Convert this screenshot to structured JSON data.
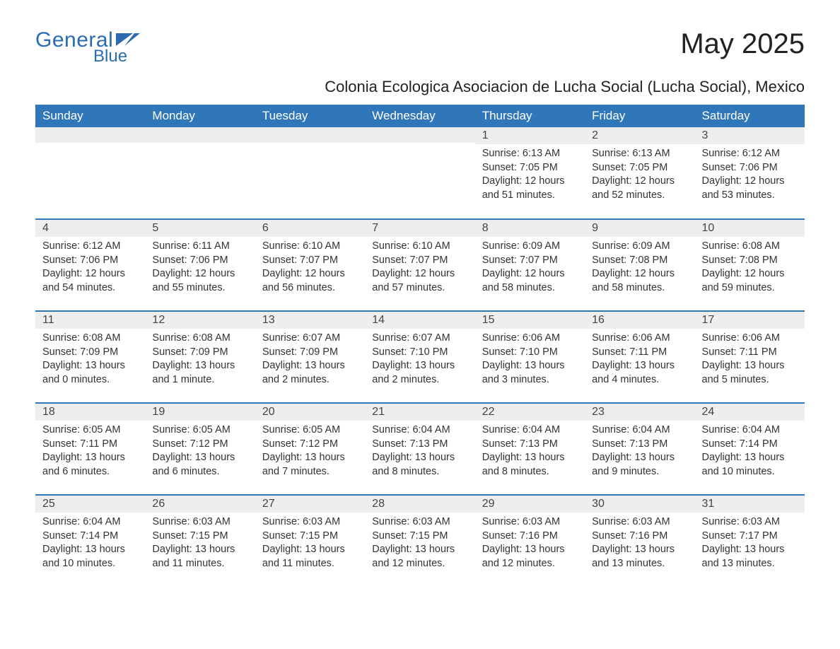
{
  "brand": {
    "general": "General",
    "blue": "Blue"
  },
  "title": "May 2025",
  "subtitle": "Colonia Ecologica Asociacion de Lucha Social (Lucha Social), Mexico",
  "colors": {
    "header_bg": "#2f77b8",
    "header_text": "#ffffff",
    "daynum_bg": "#eeeeee",
    "border": "#2f77b8",
    "brand": "#2b6cb0",
    "body_text": "#333333"
  },
  "weekdays": [
    "Sunday",
    "Monday",
    "Tuesday",
    "Wednesday",
    "Thursday",
    "Friday",
    "Saturday"
  ],
  "weeks": [
    [
      {
        "empty": true
      },
      {
        "empty": true
      },
      {
        "empty": true
      },
      {
        "empty": true
      },
      {
        "n": "1",
        "sr": "Sunrise: 6:13 AM",
        "ss": "Sunset: 7:05 PM",
        "d1": "Daylight: 12 hours",
        "d2": "and 51 minutes."
      },
      {
        "n": "2",
        "sr": "Sunrise: 6:13 AM",
        "ss": "Sunset: 7:05 PM",
        "d1": "Daylight: 12 hours",
        "d2": "and 52 minutes."
      },
      {
        "n": "3",
        "sr": "Sunrise: 6:12 AM",
        "ss": "Sunset: 7:06 PM",
        "d1": "Daylight: 12 hours",
        "d2": "and 53 minutes."
      }
    ],
    [
      {
        "n": "4",
        "sr": "Sunrise: 6:12 AM",
        "ss": "Sunset: 7:06 PM",
        "d1": "Daylight: 12 hours",
        "d2": "and 54 minutes."
      },
      {
        "n": "5",
        "sr": "Sunrise: 6:11 AM",
        "ss": "Sunset: 7:06 PM",
        "d1": "Daylight: 12 hours",
        "d2": "and 55 minutes."
      },
      {
        "n": "6",
        "sr": "Sunrise: 6:10 AM",
        "ss": "Sunset: 7:07 PM",
        "d1": "Daylight: 12 hours",
        "d2": "and 56 minutes."
      },
      {
        "n": "7",
        "sr": "Sunrise: 6:10 AM",
        "ss": "Sunset: 7:07 PM",
        "d1": "Daylight: 12 hours",
        "d2": "and 57 minutes."
      },
      {
        "n": "8",
        "sr": "Sunrise: 6:09 AM",
        "ss": "Sunset: 7:07 PM",
        "d1": "Daylight: 12 hours",
        "d2": "and 58 minutes."
      },
      {
        "n": "9",
        "sr": "Sunrise: 6:09 AM",
        "ss": "Sunset: 7:08 PM",
        "d1": "Daylight: 12 hours",
        "d2": "and 58 minutes."
      },
      {
        "n": "10",
        "sr": "Sunrise: 6:08 AM",
        "ss": "Sunset: 7:08 PM",
        "d1": "Daylight: 12 hours",
        "d2": "and 59 minutes."
      }
    ],
    [
      {
        "n": "11",
        "sr": "Sunrise: 6:08 AM",
        "ss": "Sunset: 7:09 PM",
        "d1": "Daylight: 13 hours",
        "d2": "and 0 minutes."
      },
      {
        "n": "12",
        "sr": "Sunrise: 6:08 AM",
        "ss": "Sunset: 7:09 PM",
        "d1": "Daylight: 13 hours",
        "d2": "and 1 minute."
      },
      {
        "n": "13",
        "sr": "Sunrise: 6:07 AM",
        "ss": "Sunset: 7:09 PM",
        "d1": "Daylight: 13 hours",
        "d2": "and 2 minutes."
      },
      {
        "n": "14",
        "sr": "Sunrise: 6:07 AM",
        "ss": "Sunset: 7:10 PM",
        "d1": "Daylight: 13 hours",
        "d2": "and 2 minutes."
      },
      {
        "n": "15",
        "sr": "Sunrise: 6:06 AM",
        "ss": "Sunset: 7:10 PM",
        "d1": "Daylight: 13 hours",
        "d2": "and 3 minutes."
      },
      {
        "n": "16",
        "sr": "Sunrise: 6:06 AM",
        "ss": "Sunset: 7:11 PM",
        "d1": "Daylight: 13 hours",
        "d2": "and 4 minutes."
      },
      {
        "n": "17",
        "sr": "Sunrise: 6:06 AM",
        "ss": "Sunset: 7:11 PM",
        "d1": "Daylight: 13 hours",
        "d2": "and 5 minutes."
      }
    ],
    [
      {
        "n": "18",
        "sr": "Sunrise: 6:05 AM",
        "ss": "Sunset: 7:11 PM",
        "d1": "Daylight: 13 hours",
        "d2": "and 6 minutes."
      },
      {
        "n": "19",
        "sr": "Sunrise: 6:05 AM",
        "ss": "Sunset: 7:12 PM",
        "d1": "Daylight: 13 hours",
        "d2": "and 6 minutes."
      },
      {
        "n": "20",
        "sr": "Sunrise: 6:05 AM",
        "ss": "Sunset: 7:12 PM",
        "d1": "Daylight: 13 hours",
        "d2": "and 7 minutes."
      },
      {
        "n": "21",
        "sr": "Sunrise: 6:04 AM",
        "ss": "Sunset: 7:13 PM",
        "d1": "Daylight: 13 hours",
        "d2": "and 8 minutes."
      },
      {
        "n": "22",
        "sr": "Sunrise: 6:04 AM",
        "ss": "Sunset: 7:13 PM",
        "d1": "Daylight: 13 hours",
        "d2": "and 8 minutes."
      },
      {
        "n": "23",
        "sr": "Sunrise: 6:04 AM",
        "ss": "Sunset: 7:13 PM",
        "d1": "Daylight: 13 hours",
        "d2": "and 9 minutes."
      },
      {
        "n": "24",
        "sr": "Sunrise: 6:04 AM",
        "ss": "Sunset: 7:14 PM",
        "d1": "Daylight: 13 hours",
        "d2": "and 10 minutes."
      }
    ],
    [
      {
        "n": "25",
        "sr": "Sunrise: 6:04 AM",
        "ss": "Sunset: 7:14 PM",
        "d1": "Daylight: 13 hours",
        "d2": "and 10 minutes."
      },
      {
        "n": "26",
        "sr": "Sunrise: 6:03 AM",
        "ss": "Sunset: 7:15 PM",
        "d1": "Daylight: 13 hours",
        "d2": "and 11 minutes."
      },
      {
        "n": "27",
        "sr": "Sunrise: 6:03 AM",
        "ss": "Sunset: 7:15 PM",
        "d1": "Daylight: 13 hours",
        "d2": "and 11 minutes."
      },
      {
        "n": "28",
        "sr": "Sunrise: 6:03 AM",
        "ss": "Sunset: 7:15 PM",
        "d1": "Daylight: 13 hours",
        "d2": "and 12 minutes."
      },
      {
        "n": "29",
        "sr": "Sunrise: 6:03 AM",
        "ss": "Sunset: 7:16 PM",
        "d1": "Daylight: 13 hours",
        "d2": "and 12 minutes."
      },
      {
        "n": "30",
        "sr": "Sunrise: 6:03 AM",
        "ss": "Sunset: 7:16 PM",
        "d1": "Daylight: 13 hours",
        "d2": "and 13 minutes."
      },
      {
        "n": "31",
        "sr": "Sunrise: 6:03 AM",
        "ss": "Sunset: 7:17 PM",
        "d1": "Daylight: 13 hours",
        "d2": "and 13 minutes."
      }
    ]
  ]
}
